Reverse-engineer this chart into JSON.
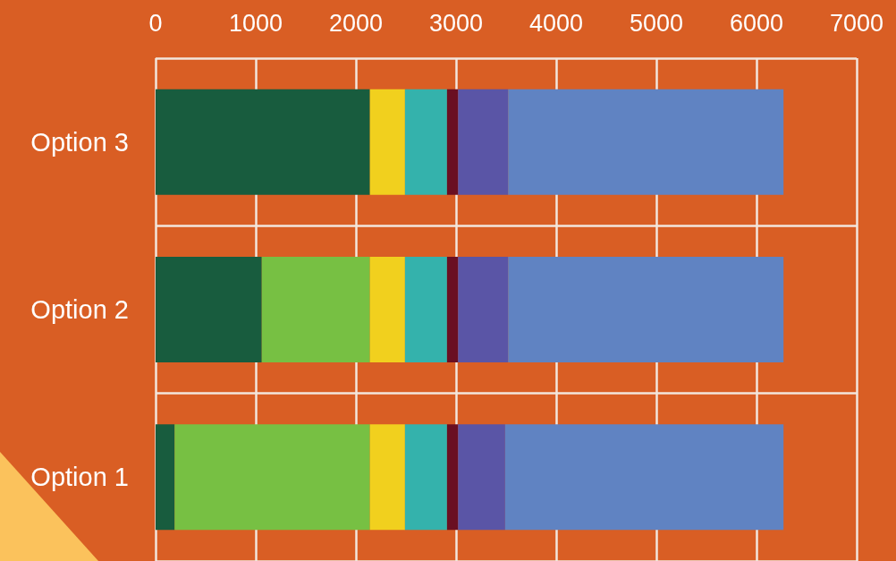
{
  "chart_data": {
    "type": "bar",
    "orientation": "horizontal",
    "stacked": true,
    "categories": [
      "Option 3",
      "Option 2",
      "Option 1"
    ],
    "series": [
      {
        "color": "#185c3e",
        "values": [
          2140,
          1060,
          190
        ]
      },
      {
        "color": "#77c043",
        "values": [
          0,
          1080,
          1950
        ]
      },
      {
        "color": "#f1d01e",
        "values": [
          350,
          350,
          350
        ]
      },
      {
        "color": "#34b2ac",
        "values": [
          420,
          420,
          420
        ]
      },
      {
        "color": "#6a0f22",
        "values": [
          110,
          110,
          110
        ]
      },
      {
        "color": "#5a55a6",
        "values": [
          500,
          500,
          470
        ]
      },
      {
        "color": "#6083c2",
        "values": [
          2750,
          2750,
          2780
        ]
      }
    ],
    "xlim": [
      0,
      7000
    ],
    "xticks": [
      0,
      1000,
      2000,
      3000,
      4000,
      5000,
      6000,
      7000
    ],
    "grid": true
  }
}
